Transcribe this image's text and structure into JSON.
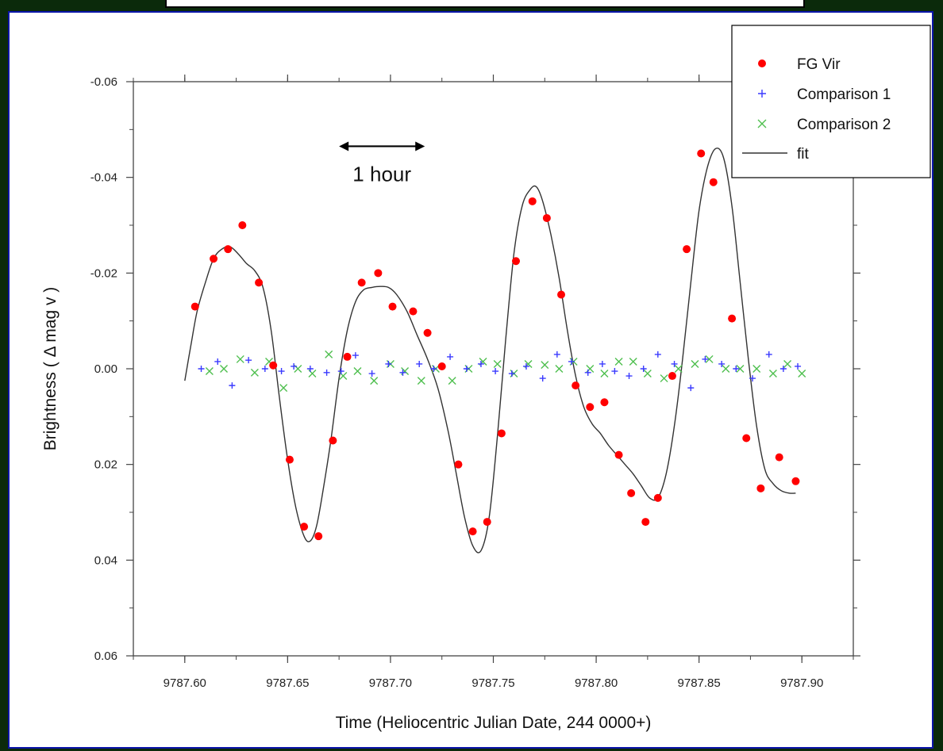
{
  "chart_data": {
    "type": "scatter",
    "title": "",
    "xlabel": "Time (Heliocentric Julian Date, 244 0000+)",
    "ylabel": "Brightness (   Δ mag v )",
    "xlim": [
      9787.575,
      9787.925
    ],
    "ylim": [
      0.06,
      -0.06
    ],
    "y_inverted": true,
    "x_ticks": [
      "9787.60",
      "9787.65",
      "9787.70",
      "9787.75",
      "9787.80",
      "9787.85",
      "9787.90"
    ],
    "y_ticks": [
      "-0.06",
      "-0.04",
      "-0.02",
      "0.00",
      "0.02",
      "0.04",
      "0.06"
    ],
    "legend_position": "top-right",
    "annotation": {
      "text": "1 hour",
      "x_start": 9787.675,
      "x_end": 9787.7167,
      "y": -0.0465
    },
    "colors": {
      "fgvir": "#ff0000",
      "comp1": "#3a3aff",
      "comp2": "#4fbf4f",
      "fit": "#333333"
    },
    "series": [
      {
        "name": "FG Vir",
        "style": "dot",
        "x": [
          9787.605,
          9787.614,
          9787.621,
          9787.628,
          9787.636,
          9787.643,
          9787.651,
          9787.658,
          9787.665,
          9787.672,
          9787.679,
          9787.686,
          9787.694,
          9787.701,
          9787.711,
          9787.718,
          9787.725,
          9787.733,
          9787.74,
          9787.747,
          9787.754,
          9787.761,
          9787.769,
          9787.776,
          9787.783,
          9787.79,
          9787.797,
          9787.804,
          9787.811,
          9787.817,
          9787.824,
          9787.83,
          9787.837,
          9787.844,
          9787.851,
          9787.857,
          9787.866,
          9787.873,
          9787.88,
          9787.889,
          9787.897
        ],
        "y": [
          -0.013,
          -0.023,
          -0.025,
          -0.03,
          -0.018,
          -0.0007,
          0.019,
          0.033,
          0.035,
          0.015,
          -0.0025,
          -0.018,
          -0.02,
          -0.013,
          -0.012,
          -0.0075,
          -0.0005,
          0.02,
          0.034,
          0.032,
          0.0135,
          -0.0225,
          -0.035,
          -0.0315,
          -0.0155,
          0.0035,
          0.008,
          0.007,
          0.018,
          0.026,
          0.032,
          0.027,
          0.0015,
          -0.025,
          -0.045,
          -0.039,
          -0.0105,
          0.0145,
          0.025,
          0.0185,
          0.0235
        ]
      },
      {
        "name": "Comparison 1",
        "style": "plus",
        "x": [
          9787.608,
          9787.616,
          9787.623,
          9787.631,
          9787.639,
          9787.647,
          9787.653,
          9787.661,
          9787.669,
          9787.676,
          9787.683,
          9787.691,
          9787.699,
          9787.706,
          9787.714,
          9787.721,
          9787.729,
          9787.737,
          9787.744,
          9787.751,
          9787.759,
          9787.766,
          9787.774,
          9787.781,
          9787.788,
          9787.796,
          9787.803,
          9787.809,
          9787.816,
          9787.823,
          9787.83,
          9787.838,
          9787.846,
          9787.853,
          9787.861,
          9787.868,
          9787.876,
          9787.884,
          9787.891,
          9787.898
        ],
        "y": [
          0.0,
          -0.0015,
          0.0035,
          -0.0018,
          0.0,
          0.0005,
          -0.0005,
          0.0,
          0.0008,
          0.0005,
          -0.0028,
          0.001,
          -0.001,
          0.0008,
          -0.001,
          0.0,
          -0.0025,
          0.0,
          -0.001,
          0.0005,
          0.001,
          -0.0005,
          0.002,
          -0.003,
          -0.0015,
          0.0008,
          -0.001,
          0.0005,
          0.0015,
          0.0,
          -0.003,
          -0.001,
          0.004,
          -0.002,
          -0.001,
          0.0,
          0.002,
          -0.003,
          0.0,
          -0.0005
        ]
      },
      {
        "name": "Comparison 2",
        "style": "x",
        "x": [
          9787.612,
          9787.619,
          9787.627,
          9787.634,
          9787.641,
          9787.648,
          9787.655,
          9787.662,
          9787.67,
          9787.677,
          9787.684,
          9787.692,
          9787.7,
          9787.707,
          9787.715,
          9787.722,
          9787.73,
          9787.738,
          9787.745,
          9787.752,
          9787.76,
          9787.767,
          9787.775,
          9787.782,
          9787.789,
          9787.797,
          9787.804,
          9787.811,
          9787.818,
          9787.825,
          9787.833,
          9787.84,
          9787.848,
          9787.855,
          9787.863,
          9787.87,
          9787.878,
          9787.886,
          9787.893,
          9787.9
        ],
        "y": [
          0.0005,
          0.0,
          -0.002,
          0.0008,
          -0.0015,
          0.004,
          0.0,
          0.001,
          -0.003,
          0.0015,
          0.0005,
          0.0025,
          -0.001,
          0.0005,
          0.0025,
          0.0,
          0.0025,
          0.0,
          -0.0015,
          -0.001,
          0.001,
          -0.001,
          -0.0008,
          0.0,
          -0.0015,
          0.0,
          0.001,
          -0.0015,
          -0.0015,
          0.001,
          0.002,
          0.0,
          -0.001,
          -0.002,
          0.0,
          0.0,
          0.0,
          0.001,
          -0.001,
          0.001
        ]
      },
      {
        "name": "fit",
        "style": "line",
        "x": [
          9787.6,
          9787.603,
          9787.606,
          9787.61,
          9787.614,
          9787.618,
          9787.622,
          9787.626,
          9787.63,
          9787.634,
          9787.638,
          9787.642,
          9787.646,
          9787.65,
          9787.654,
          9787.658,
          9787.661,
          9787.664,
          9787.667,
          9787.671,
          9787.675,
          9787.679,
          9787.683,
          9787.687,
          9787.691,
          9787.695,
          9787.699,
          9787.703,
          9787.708,
          9787.713,
          9787.718,
          9787.723,
          9787.728,
          9787.732,
          9787.736,
          9787.74,
          9787.744,
          9787.748,
          9787.752,
          9787.756,
          9787.76,
          9787.764,
          9787.768,
          9787.771,
          9787.774,
          9787.778,
          9787.782,
          9787.786,
          9787.79,
          9787.794,
          9787.798,
          9787.802,
          9787.806,
          9787.81,
          9787.814,
          9787.818,
          9787.822,
          9787.826,
          9787.83,
          9787.834,
          9787.838,
          9787.842,
          9787.846,
          9787.85,
          9787.854,
          9787.858,
          9787.862,
          9787.866,
          9787.87,
          9787.874,
          9787.878,
          9787.882,
          9787.886,
          9787.89,
          9787.894,
          9787.897
        ],
        "y": [
          0.0025,
          -0.005,
          -0.012,
          -0.018,
          -0.023,
          -0.025,
          -0.0255,
          -0.024,
          -0.022,
          -0.0205,
          -0.017,
          -0.008,
          0.006,
          0.019,
          0.029,
          0.035,
          0.036,
          0.033,
          0.026,
          0.015,
          0.002,
          -0.008,
          -0.014,
          -0.0165,
          -0.017,
          -0.0172,
          -0.017,
          -0.0155,
          -0.012,
          -0.007,
          -0.002,
          0.004,
          0.013,
          0.022,
          0.031,
          0.037,
          0.038,
          0.031,
          0.014,
          -0.006,
          -0.024,
          -0.034,
          -0.0375,
          -0.038,
          -0.035,
          -0.028,
          -0.019,
          -0.008,
          0.0015,
          0.008,
          0.0115,
          0.0135,
          0.016,
          0.018,
          0.02,
          0.022,
          0.0245,
          0.027,
          0.027,
          0.022,
          0.012,
          -0.002,
          -0.018,
          -0.033,
          -0.042,
          -0.046,
          -0.044,
          -0.034,
          -0.018,
          -0.002,
          0.012,
          0.021,
          0.024,
          0.0255,
          0.026,
          0.026
        ]
      }
    ]
  }
}
